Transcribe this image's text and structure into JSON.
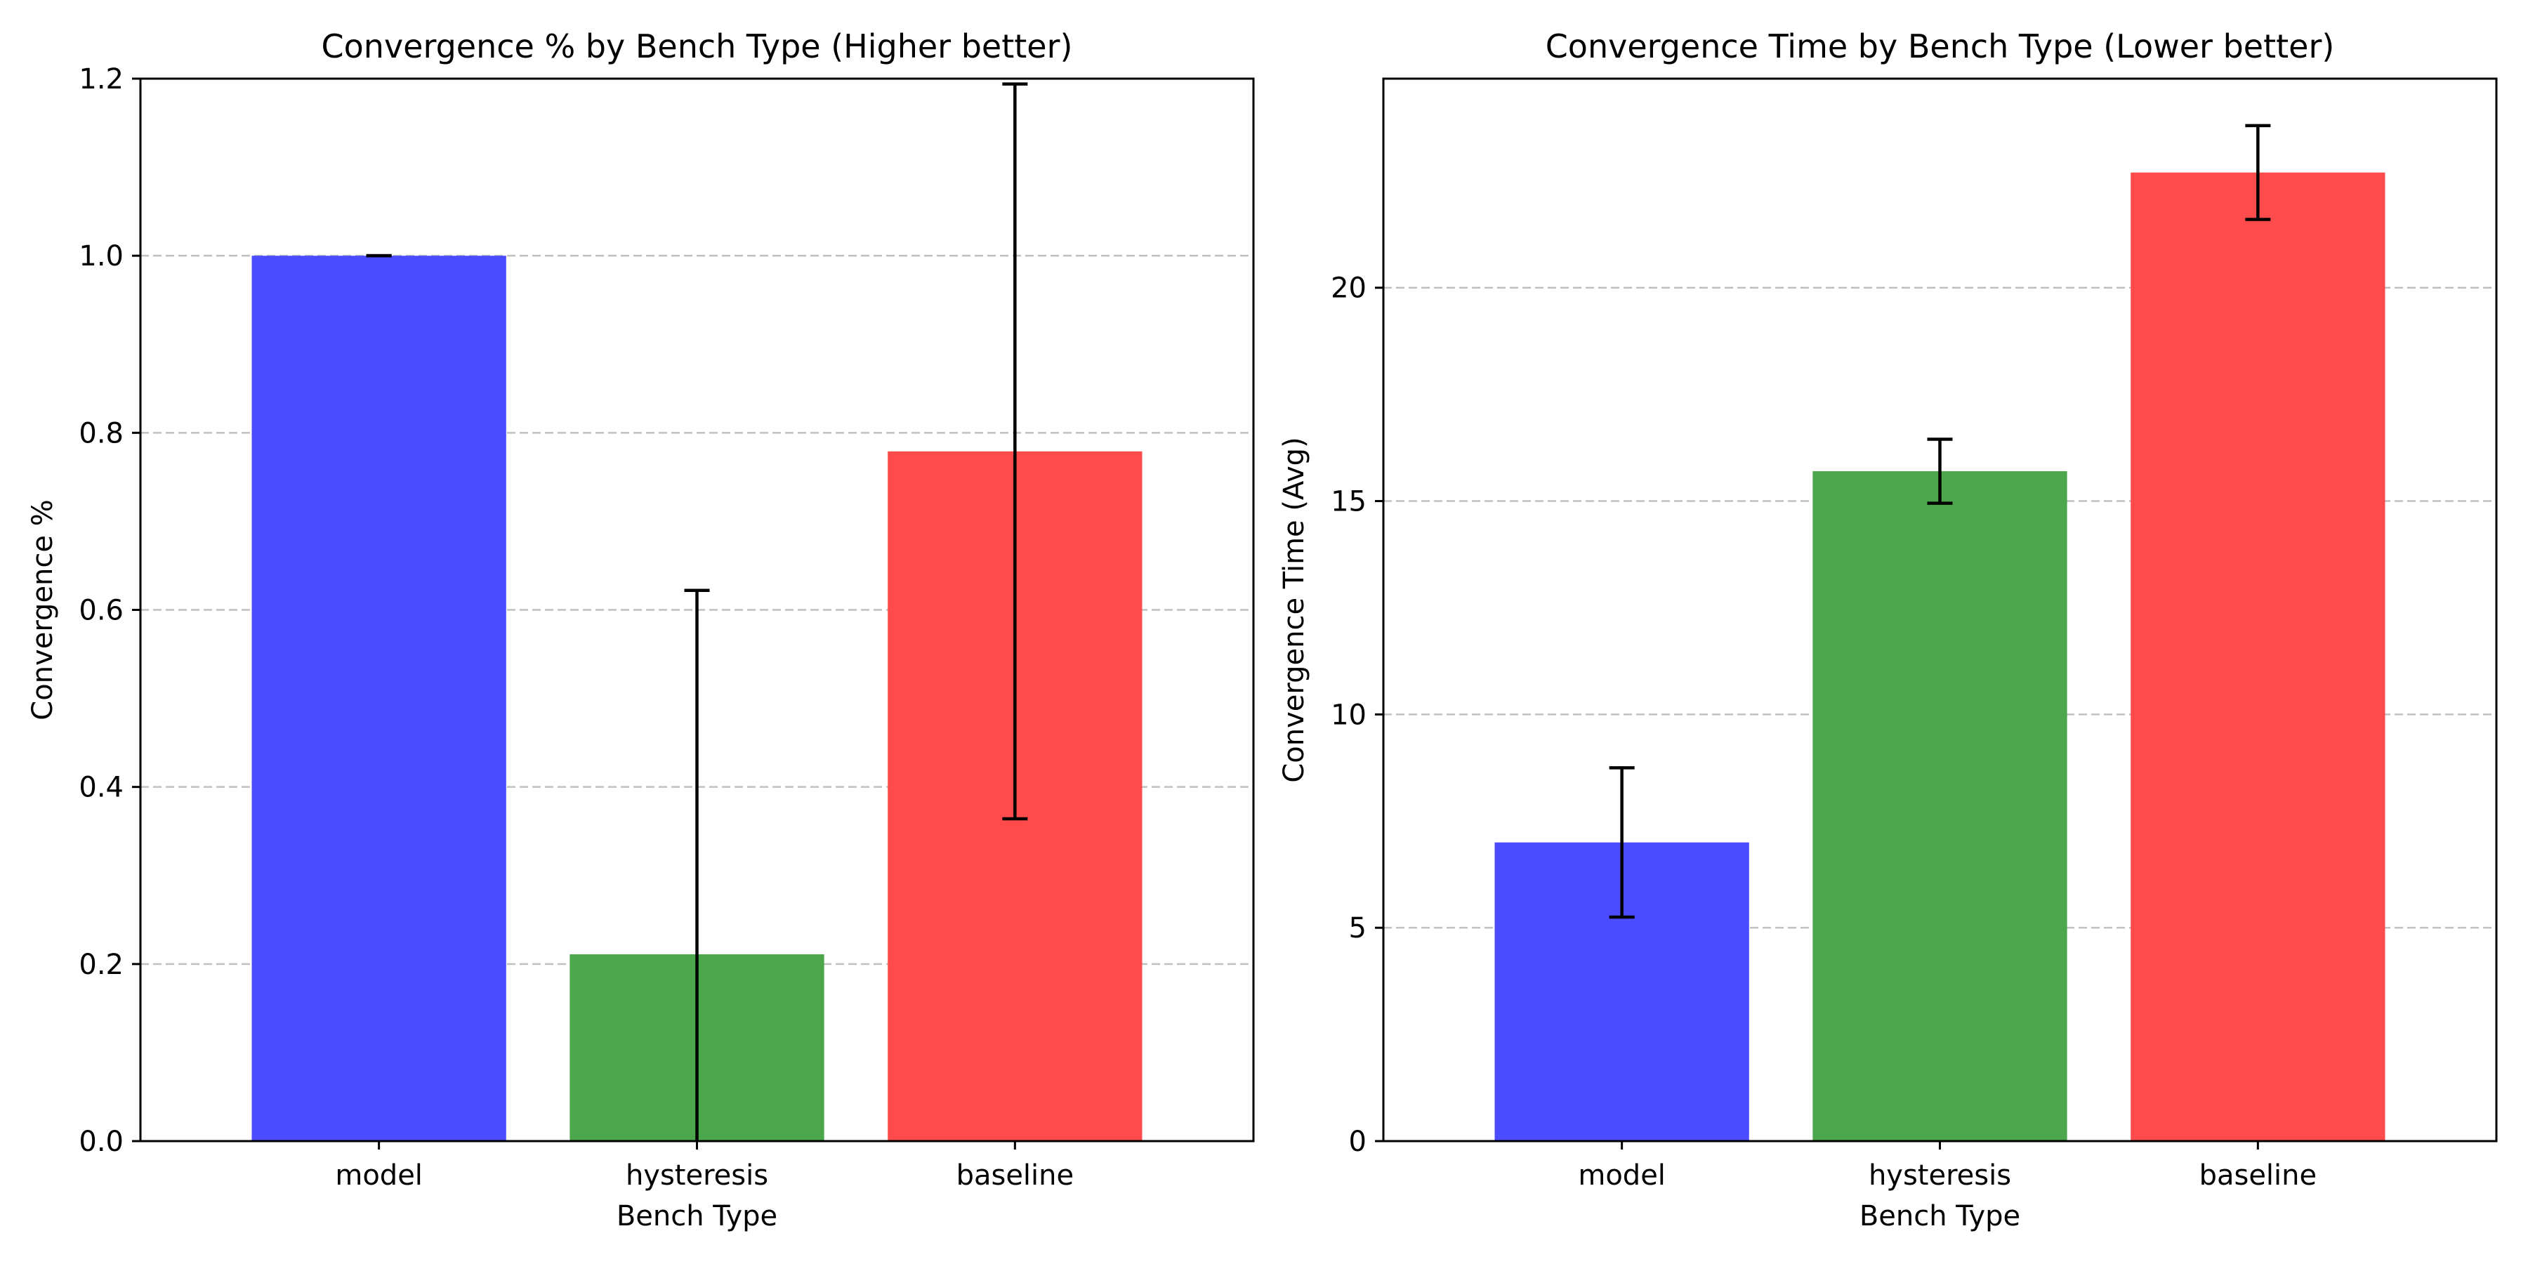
{
  "chart_data": [
    {
      "type": "bar",
      "title": "Convergence % by Bench Type (Higher better)",
      "xlabel": "Bench Type",
      "ylabel": "Convergence %",
      "categories": [
        "model",
        "hysteresis",
        "baseline"
      ],
      "values": [
        1.0,
        0.211,
        0.779
      ],
      "errors": [
        0.0,
        0.411,
        0.415
      ],
      "colors": [
        "#4B4BFF",
        "#4CA64C",
        "#FF4B4B"
      ],
      "ylim": [
        0,
        1.2
      ],
      "yticks": [
        0.0,
        0.2,
        0.4,
        0.6,
        0.8,
        1.0,
        1.2
      ],
      "ytick_labels": [
        "0.0",
        "0.2",
        "0.4",
        "0.6",
        "0.8",
        "1.0",
        "1.2"
      ],
      "grid": true
    },
    {
      "type": "bar",
      "title": "Convergence Time by Bench Type (Lower better)",
      "xlabel": "Bench Type",
      "ylabel": "Convergence Time (Avg)",
      "categories": [
        "model",
        "hysteresis",
        "baseline"
      ],
      "values": [
        7.0,
        15.7,
        22.7
      ],
      "errors": [
        1.75,
        0.75,
        1.1
      ],
      "colors": [
        "#4B4BFF",
        "#4CA64C",
        "#FF4B4B"
      ],
      "ylim": [
        0,
        24.9
      ],
      "yticks": [
        0,
        5,
        10,
        15,
        20
      ],
      "ytick_labels": [
        "0",
        "5",
        "10",
        "15",
        "20"
      ],
      "grid": true
    }
  ]
}
